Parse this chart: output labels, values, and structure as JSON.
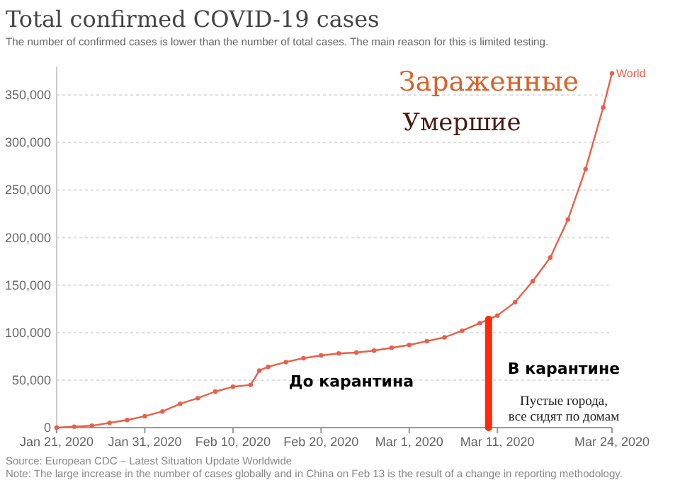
{
  "chart_data": {
    "type": "line",
    "title": "Total confirmed COVID-19 cases",
    "subtitle": "The number of confirmed cases is lower than the number of total cases. The main reason for this is limited testing.",
    "x": [
      "2020-01-21",
      "2020-01-23",
      "2020-01-25",
      "2020-01-27",
      "2020-01-29",
      "2020-01-31",
      "2020-02-02",
      "2020-02-04",
      "2020-02-06",
      "2020-02-08",
      "2020-02-10",
      "2020-02-12",
      "2020-02-13",
      "2020-02-14",
      "2020-02-16",
      "2020-02-18",
      "2020-02-20",
      "2020-02-22",
      "2020-02-24",
      "2020-02-26",
      "2020-02-28",
      "2020-03-01",
      "2020-03-03",
      "2020-03-05",
      "2020-03-07",
      "2020-03-09",
      "2020-03-11",
      "2020-03-13",
      "2020-03-15",
      "2020-03-17",
      "2020-03-19",
      "2020-03-21",
      "2020-03-23",
      "2020-03-24"
    ],
    "series": [
      {
        "name": "World",
        "color": "#e8604a",
        "values": [
          0,
          1000,
          2000,
          5000,
          8000,
          12000,
          17000,
          25000,
          31000,
          38000,
          43000,
          45000,
          60000,
          64000,
          69000,
          73000,
          76000,
          78000,
          79000,
          81000,
          84000,
          87000,
          91000,
          95000,
          102000,
          110000,
          118000,
          132000,
          154000,
          179000,
          219000,
          272000,
          337000,
          373000
        ]
      }
    ],
    "xlim": [
      "2020-01-21",
      "2020-03-24"
    ],
    "xticks": [
      {
        "value": "2020-01-21",
        "label": "Jan 21, 2020"
      },
      {
        "value": "2020-01-31",
        "label": "Jan 31, 2020"
      },
      {
        "value": "2020-02-10",
        "label": "Feb 10, 2020"
      },
      {
        "value": "2020-02-20",
        "label": "Feb 20, 2020"
      },
      {
        "value": "2020-03-01",
        "label": "Mar 1, 2020"
      },
      {
        "value": "2020-03-11",
        "label": "Mar 11, 2020"
      },
      {
        "value": "2020-03-24",
        "label": "Mar 24, 2020"
      }
    ],
    "ylim": [
      0,
      380000
    ],
    "yticks": [
      {
        "value": 0,
        "label": "0"
      },
      {
        "value": 50000,
        "label": "50,000"
      },
      {
        "value": 100000,
        "label": "100,000"
      },
      {
        "value": 150000,
        "label": "150,000"
      },
      {
        "value": 200000,
        "label": "200,000"
      },
      {
        "value": 250000,
        "label": "250,000"
      },
      {
        "value": 300000,
        "label": "300,000"
      },
      {
        "value": 350000,
        "label": "350,000"
      }
    ],
    "grid": "y",
    "marker": "circle",
    "line_style": "solid",
    "ref_lines": [
      {
        "axis": "x",
        "value": "2020-03-10",
        "color": "#ff2a0a"
      }
    ],
    "annotations": [
      "Зараженные",
      "Умершие",
      "До карантина",
      "В карантине",
      "Пустые города,\nвсе сидят по домам",
      "Source: European CDC – Latest Situation Update Worldwide",
      "Note: The large increase in the number of cases globally and in China on Feb 13 is the result of a change in reporting methodology."
    ]
  }
}
